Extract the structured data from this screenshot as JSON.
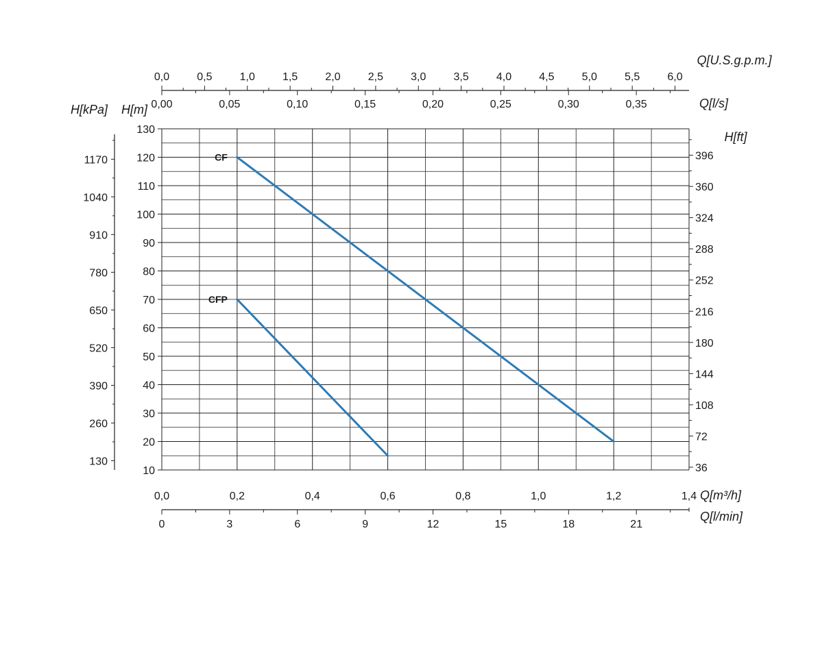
{
  "chart_data": {
    "type": "line",
    "title": "",
    "colors": {
      "curve": "#2d7bb5",
      "grid": "#222222",
      "text": "#1a1a1a"
    },
    "grid": true,
    "series": [
      {
        "name": "CF",
        "x": [
          0.2,
          1.2
        ],
        "y": [
          120,
          20
        ]
      },
      {
        "name": "CFP",
        "x": [
          0.2,
          0.6
        ],
        "y": [
          70,
          15
        ]
      }
    ],
    "axes": {
      "x_m3h": {
        "label": "Q[m³/h]",
        "lim": [
          0,
          1.4
        ],
        "tick_values": [
          0,
          0.2,
          0.4,
          0.6,
          0.8,
          1.0,
          1.2,
          1.4
        ],
        "tick_labels": [
          "0,0",
          "0,2",
          "0,4",
          "0,6",
          "0,8",
          "1,0",
          "1,2",
          "1,4"
        ]
      },
      "x_lmin": {
        "label": "Q[l/min]",
        "lim": [
          0,
          23.33
        ],
        "tick_values": [
          0,
          3,
          6,
          9,
          12,
          15,
          18,
          21
        ],
        "tick_labels": [
          "0",
          "3",
          "6",
          "9",
          "12",
          "15",
          "18",
          "21"
        ]
      },
      "x_usgpm": {
        "label": "Q[U.S.g.p.m.]",
        "lim": [
          0,
          6.164
        ],
        "tick_values": [
          0,
          0.5,
          1.0,
          1.5,
          2.0,
          2.5,
          3.0,
          3.5,
          4.0,
          4.5,
          5.0,
          5.5,
          6.0
        ],
        "tick_labels": [
          "0,0",
          "0,5",
          "1,0",
          "1,5",
          "2,0",
          "2,5",
          "3,0",
          "3,5",
          "4,0",
          "4,5",
          "5,0",
          "5,5",
          "6,0"
        ]
      },
      "x_ls": {
        "label": "Q[l/s]",
        "lim": [
          0,
          0.3889
        ],
        "tick_values": [
          0,
          0.05,
          0.1,
          0.15,
          0.2,
          0.25,
          0.3,
          0.35
        ],
        "tick_labels": [
          "0,00",
          "0,05",
          "0,10",
          "0,15",
          "0,20",
          "0,25",
          "0,30",
          "0,35"
        ]
      },
      "y_m": {
        "label": "H[m]",
        "lim": [
          10,
          130
        ],
        "tick_values": [
          10,
          20,
          30,
          40,
          50,
          60,
          70,
          80,
          90,
          100,
          110,
          120,
          130
        ],
        "tick_labels": [
          "10",
          "20",
          "30",
          "40",
          "50",
          "60",
          "70",
          "80",
          "90",
          "100",
          "110",
          "120",
          "130"
        ]
      },
      "y_kpa": {
        "label": "H[kPa]",
        "tick_values": [
          130,
          260,
          390,
          520,
          650,
          780,
          910,
          1040,
          1170
        ],
        "tick_labels": [
          "130",
          "260",
          "390",
          "520",
          "650",
          "780",
          "910",
          "1040",
          "1170"
        ]
      },
      "y_ft": {
        "label": "H[ft]",
        "tick_values": [
          36,
          72,
          108,
          144,
          180,
          216,
          252,
          288,
          324,
          360,
          396
        ],
        "tick_labels": [
          "36",
          "72",
          "108",
          "144",
          "180",
          "216",
          "252",
          "288",
          "324",
          "360",
          "396"
        ]
      }
    }
  }
}
